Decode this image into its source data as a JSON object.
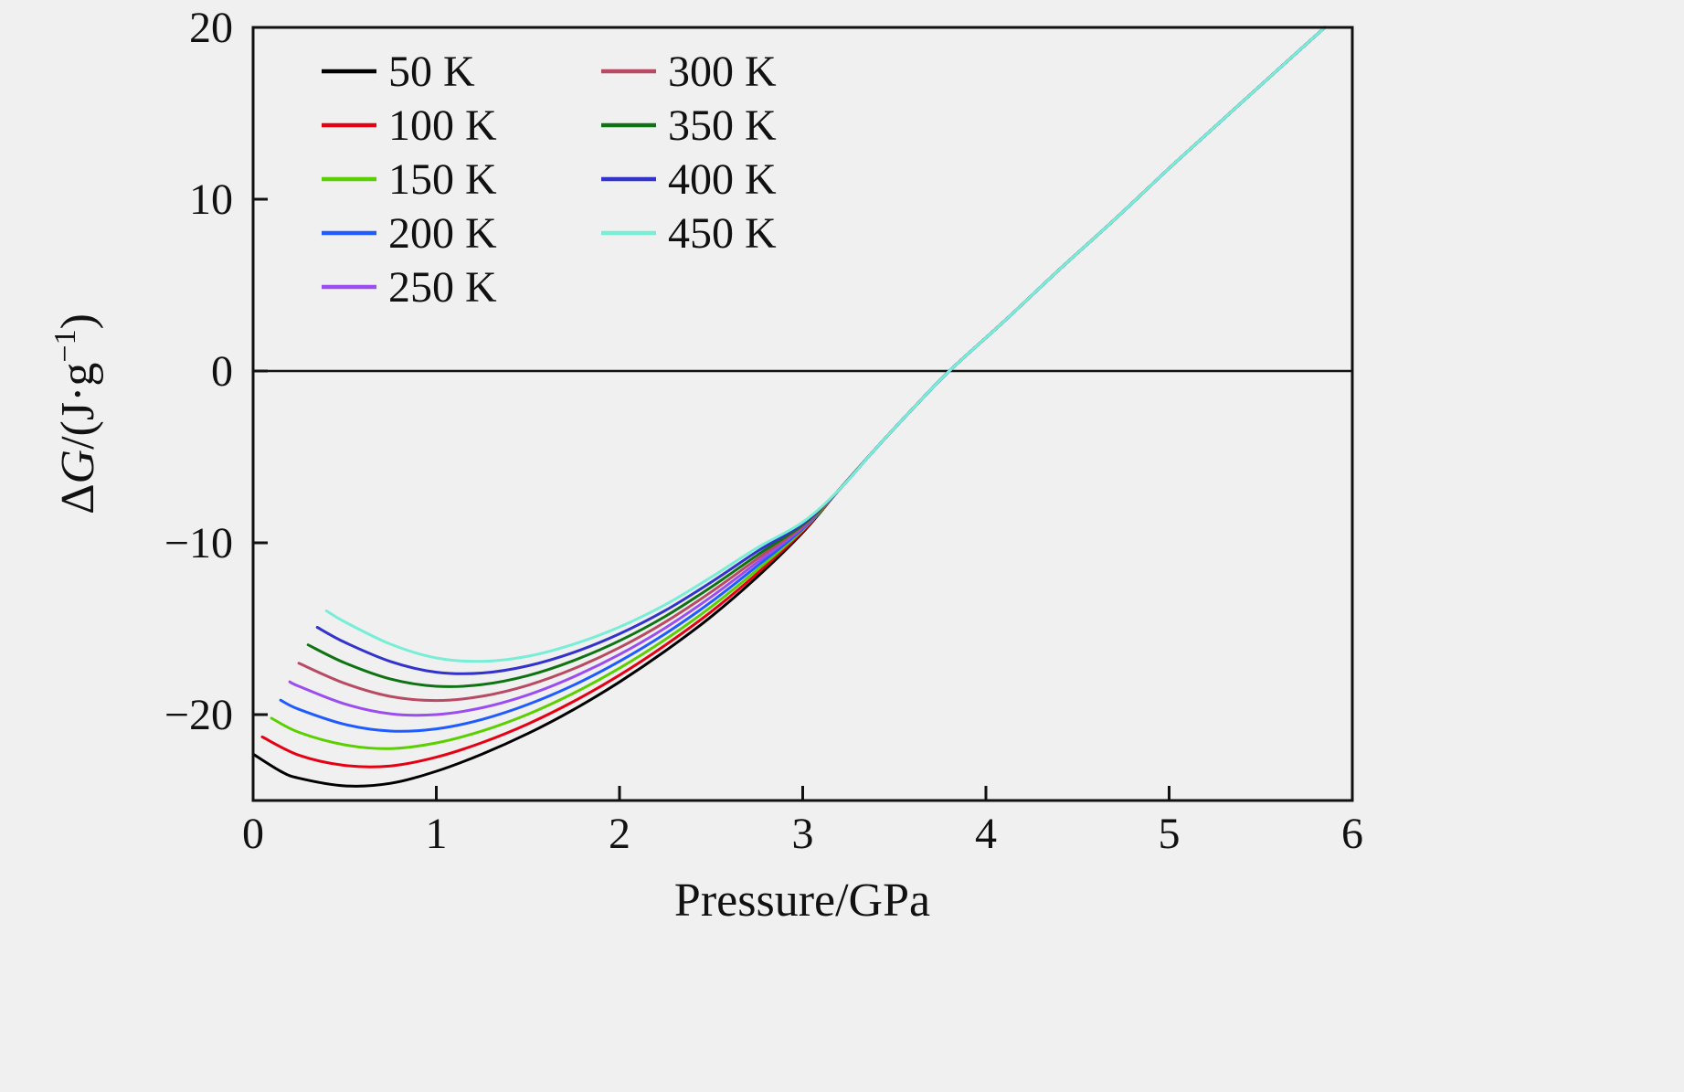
{
  "figure": {
    "background": "#f0f0f0",
    "axis_color": "#111111"
  },
  "chart_data": {
    "type": "line",
    "title": "",
    "xlabel": "Pressure/GPa",
    "ylabel": "ΔG/(J·g⁻¹)",
    "ylabel_parts": {
      "delta": "Δ",
      "var": "G",
      "mid": "/(J·g",
      "sup": "−1",
      "end": ")"
    },
    "xlim": [
      0,
      6
    ],
    "ylim": [
      -25,
      20
    ],
    "xticks": [
      0,
      1,
      2,
      3,
      4,
      5,
      6
    ],
    "yticks": [
      20,
      10,
      0,
      -10,
      -20
    ],
    "zero_line": 0,
    "grid": false,
    "legend": {
      "position": "top-left",
      "columns": 2,
      "col_split": 5
    },
    "common_tail": [
      [
        3.2,
        -6.9
      ],
      [
        3.4,
        -4.5
      ],
      [
        3.6,
        -2.2
      ],
      [
        3.8,
        0
      ],
      [
        4.1,
        2.9
      ],
      [
        4.4,
        5.9
      ],
      [
        4.7,
        8.8
      ],
      [
        5.0,
        11.8
      ],
      [
        5.3,
        14.7
      ],
      [
        5.6,
        17.6
      ],
      [
        5.85,
        20.0
      ]
    ],
    "series": [
      {
        "label": "50 K",
        "color": "#000000",
        "points": [
          [
            0,
            -22.3
          ],
          [
            0.15,
            -23.3
          ],
          [
            0.25,
            -23.7
          ],
          [
            0.5,
            -24.15
          ],
          [
            0.75,
            -24.0
          ],
          [
            1.0,
            -23.3
          ],
          [
            1.25,
            -22.3
          ],
          [
            1.5,
            -21.1
          ],
          [
            1.75,
            -19.7
          ],
          [
            2.0,
            -18.1
          ],
          [
            2.25,
            -16.3
          ],
          [
            2.5,
            -14.3
          ],
          [
            2.75,
            -12.0
          ],
          [
            3.0,
            -9.4
          ]
        ]
      },
      {
        "label": "100 K",
        "color": "#e60014",
        "points": [
          [
            0.05,
            -21.3
          ],
          [
            0.25,
            -22.36
          ],
          [
            0.5,
            -22.96
          ],
          [
            0.75,
            -22.99
          ],
          [
            1.0,
            -22.48
          ],
          [
            1.25,
            -21.63
          ],
          [
            1.5,
            -20.54
          ],
          [
            1.75,
            -19.23
          ],
          [
            2.0,
            -17.7
          ],
          [
            2.25,
            -15.96
          ],
          [
            2.5,
            -14.01
          ],
          [
            2.75,
            -11.79
          ],
          [
            3.0,
            -9.33
          ]
        ]
      },
      {
        "label": "150 K",
        "color": "#5ad000",
        "points": [
          [
            0.1,
            -20.21
          ],
          [
            0.25,
            -21.03
          ],
          [
            0.5,
            -21.76
          ],
          [
            0.75,
            -21.98
          ],
          [
            1.0,
            -21.65
          ],
          [
            1.25,
            -20.95
          ],
          [
            1.5,
            -19.98
          ],
          [
            1.75,
            -18.75
          ],
          [
            2.0,
            -17.3
          ],
          [
            2.25,
            -15.63
          ],
          [
            2.5,
            -13.73
          ],
          [
            2.75,
            -11.58
          ],
          [
            3.0,
            -9.25
          ]
        ]
      },
      {
        "label": "200 K",
        "color": "#1f5bff",
        "points": [
          [
            0.15,
            -19.16
          ],
          [
            0.25,
            -19.69
          ],
          [
            0.5,
            -20.57
          ],
          [
            0.75,
            -20.96
          ],
          [
            1.0,
            -20.83
          ],
          [
            1.25,
            -20.28
          ],
          [
            1.5,
            -19.41
          ],
          [
            1.75,
            -18.28
          ],
          [
            2.0,
            -16.9
          ],
          [
            2.25,
            -15.29
          ],
          [
            2.5,
            -13.44
          ],
          [
            2.75,
            -11.36
          ],
          [
            3.0,
            -9.18
          ]
        ]
      },
      {
        "label": "250 K",
        "color": "#9b4df0",
        "points": [
          [
            0.2,
            -18.09
          ],
          [
            0.25,
            -18.35
          ],
          [
            0.5,
            -19.38
          ],
          [
            0.75,
            -19.95
          ],
          [
            1.0,
            -20.0
          ],
          [
            1.25,
            -19.6
          ],
          [
            1.5,
            -18.85
          ],
          [
            1.75,
            -17.8
          ],
          [
            2.0,
            -16.5
          ],
          [
            2.25,
            -14.95
          ],
          [
            2.5,
            -13.15
          ],
          [
            2.75,
            -11.15
          ],
          [
            3.0,
            -9.1
          ]
        ]
      },
      {
        "label": "300 K",
        "color": "#b84a63",
        "points": [
          [
            0.25,
            -17.01
          ],
          [
            0.5,
            -18.18
          ],
          [
            0.75,
            -18.94
          ],
          [
            1.0,
            -19.18
          ],
          [
            1.25,
            -18.93
          ],
          [
            1.5,
            -18.29
          ],
          [
            1.75,
            -17.33
          ],
          [
            2.0,
            -16.1
          ],
          [
            2.25,
            -14.61
          ],
          [
            2.5,
            -12.86
          ],
          [
            2.75,
            -10.94
          ],
          [
            3.0,
            -9.03
          ]
        ]
      },
      {
        "label": "350 K",
        "color": "#0e7312",
        "points": [
          [
            0.3,
            -15.94
          ],
          [
            0.5,
            -16.99
          ],
          [
            0.75,
            -17.93
          ],
          [
            1.0,
            -18.35
          ],
          [
            1.25,
            -18.25
          ],
          [
            1.5,
            -17.73
          ],
          [
            1.75,
            -16.85
          ],
          [
            2.0,
            -15.7
          ],
          [
            2.25,
            -14.28
          ],
          [
            2.5,
            -12.58
          ],
          [
            2.75,
            -10.73
          ],
          [
            3.0,
            -8.95
          ]
        ]
      },
      {
        "label": "400 K",
        "color": "#3333cc",
        "points": [
          [
            0.35,
            -14.92
          ],
          [
            0.5,
            -15.79
          ],
          [
            0.75,
            -16.91
          ],
          [
            1.0,
            -17.53
          ],
          [
            1.25,
            -17.58
          ],
          [
            1.5,
            -17.16
          ],
          [
            1.75,
            -16.38
          ],
          [
            2.0,
            -15.3
          ],
          [
            2.25,
            -13.94
          ],
          [
            2.5,
            -12.29
          ],
          [
            2.75,
            -10.51
          ],
          [
            3.0,
            -8.88
          ]
        ]
      },
      {
        "label": "450 K",
        "color": "#78eed6",
        "points": [
          [
            0.4,
            -13.96
          ],
          [
            0.5,
            -14.6
          ],
          [
            0.75,
            -15.9
          ],
          [
            1.0,
            -16.7
          ],
          [
            1.25,
            -16.9
          ],
          [
            1.5,
            -16.6
          ],
          [
            1.75,
            -15.9
          ],
          [
            2.0,
            -14.9
          ],
          [
            2.25,
            -13.6
          ],
          [
            2.5,
            -12.0
          ],
          [
            2.75,
            -10.3
          ],
          [
            3.0,
            -8.8
          ]
        ]
      }
    ]
  }
}
